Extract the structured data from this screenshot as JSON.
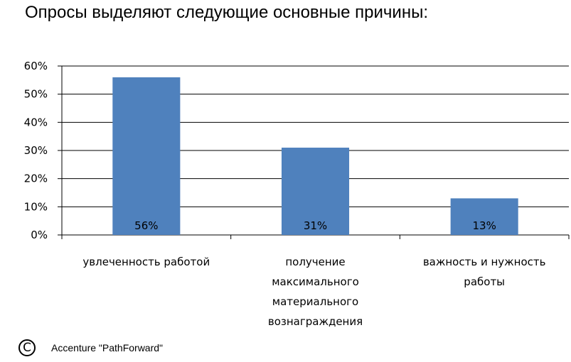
{
  "title": "Опросы выделяют следующие основные причины:",
  "chart_data": {
    "type": "bar",
    "categories": [
      [
        "увлеченность работой"
      ],
      [
        "получение",
        "максимального",
        "материального",
        "вознаграждения"
      ],
      [
        "важность и нужность",
        "работы"
      ]
    ],
    "values": [
      56,
      31,
      13
    ],
    "data_labels": [
      "56%",
      "31%",
      "13%"
    ],
    "ylim": [
      0,
      60
    ],
    "yticks": [
      0,
      10,
      20,
      30,
      40,
      50,
      60
    ],
    "ytick_labels": [
      "0%",
      "10%",
      "20%",
      "30%",
      "40%",
      "50%",
      "60%"
    ],
    "bar_color": "#4f81bd",
    "grid": true,
    "legend": "none"
  },
  "footer": {
    "icon": "copyright-icon",
    "icon_glyph": "C",
    "source": "Accenture \"PathForward\""
  }
}
